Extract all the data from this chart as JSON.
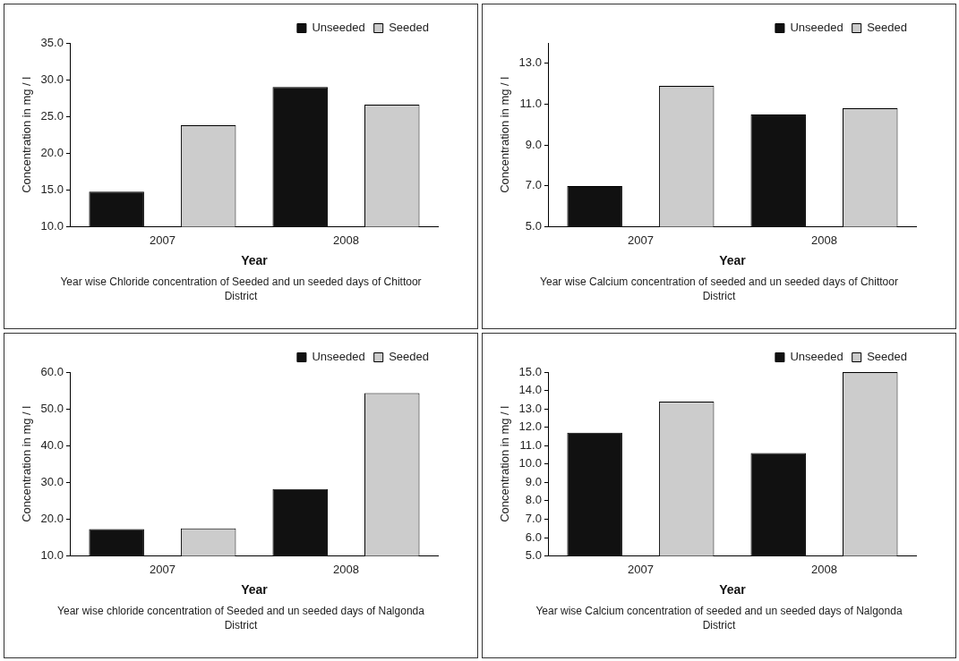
{
  "chart_data": [
    {
      "type": "bar",
      "categories": [
        "2007",
        "2008"
      ],
      "xlabel": "Year",
      "ylabel": "Concentration in mg / l",
      "ylim": [
        10,
        35
      ],
      "yticks": [
        {
          "value": 10,
          "label": "10.0"
        },
        {
          "value": 15,
          "label": "15.0"
        },
        {
          "value": 20,
          "label": "20.0"
        },
        {
          "value": 25,
          "label": "25.0"
        },
        {
          "value": 30,
          "label": "30.0"
        },
        {
          "value": 35,
          "label": "35.0"
        }
      ],
      "grid": false,
      "legend": "top right",
      "annotations": [
        "Year wise Chloride concentration of Seeded and un seeded days of Chittoor District"
      ],
      "series": [
        {
          "name": "Unseeded",
          "color": "#111111",
          "values": [
            14.8,
            29.0
          ]
        },
        {
          "name": "Seeded",
          "color": "#cccccc",
          "values": [
            23.8,
            26.6
          ]
        }
      ]
    },
    {
      "type": "bar",
      "categories": [
        "2007",
        "2008"
      ],
      "xlabel": "Year",
      "ylabel": "Concentration in mg / l",
      "ylim": [
        5,
        14
      ],
      "yticks": [
        {
          "value": 5,
          "label": "5.0"
        },
        {
          "value": 7,
          "label": "7.0"
        },
        {
          "value": 9,
          "label": "9.0"
        },
        {
          "value": 11,
          "label": "11.0"
        },
        {
          "value": 13,
          "label": "13.0"
        }
      ],
      "grid": false,
      "legend": "top right",
      "annotations": [
        "Year wise Calcium concentration of seeded and un seeded days of Chittoor District"
      ],
      "series": [
        {
          "name": "Unseeded",
          "color": "#111111",
          "values": [
            7.0,
            10.5
          ]
        },
        {
          "name": "Seeded",
          "color": "#cccccc",
          "values": [
            11.9,
            10.8
          ]
        }
      ]
    },
    {
      "type": "bar",
      "categories": [
        "2007",
        "2008"
      ],
      "xlabel": "Year",
      "ylabel": "Concentration in mg / l",
      "ylim": [
        10,
        60
      ],
      "yticks": [
        {
          "value": 10,
          "label": "10.0"
        },
        {
          "value": 20,
          "label": "20.0"
        },
        {
          "value": 30,
          "label": "30.0"
        },
        {
          "value": 40,
          "label": "40.0"
        },
        {
          "value": 50,
          "label": "50.0"
        },
        {
          "value": 60,
          "label": "60.0"
        }
      ],
      "grid": false,
      "legend": "top right",
      "annotations": [
        "Year wise chloride concentration of Seeded and un seeded days of Nalgonda District"
      ],
      "series": [
        {
          "name": "Unseeded",
          "color": "#111111",
          "values": [
            17.3,
            28.2
          ]
        },
        {
          "name": "Seeded",
          "color": "#cccccc",
          "values": [
            17.5,
            54.3
          ]
        }
      ]
    },
    {
      "type": "bar",
      "categories": [
        "2007",
        "2008"
      ],
      "xlabel": "Year",
      "ylabel": "Concentration in mg / l",
      "ylim": [
        5,
        15
      ],
      "yticks": [
        {
          "value": 5,
          "label": "5.0"
        },
        {
          "value": 6,
          "label": "6.0"
        },
        {
          "value": 7,
          "label": "7.0"
        },
        {
          "value": 8,
          "label": "8.0"
        },
        {
          "value": 9,
          "label": "9.0"
        },
        {
          "value": 10,
          "label": "10.0"
        },
        {
          "value": 11,
          "label": "11.0"
        },
        {
          "value": 12,
          "label": "12.0"
        },
        {
          "value": 13,
          "label": "13.0"
        },
        {
          "value": 14,
          "label": "14.0"
        },
        {
          "value": 15,
          "label": "15.0"
        }
      ],
      "grid": false,
      "legend": "top right",
      "annotations": [
        "Year wise Calcium concentration of seeded and un seeded days of Nalgonda District"
      ],
      "series": [
        {
          "name": "Unseeded",
          "color": "#111111",
          "values": [
            11.7,
            10.6
          ]
        },
        {
          "name": "Seeded",
          "color": "#cccccc",
          "values": [
            13.4,
            15.0
          ]
        }
      ]
    }
  ]
}
